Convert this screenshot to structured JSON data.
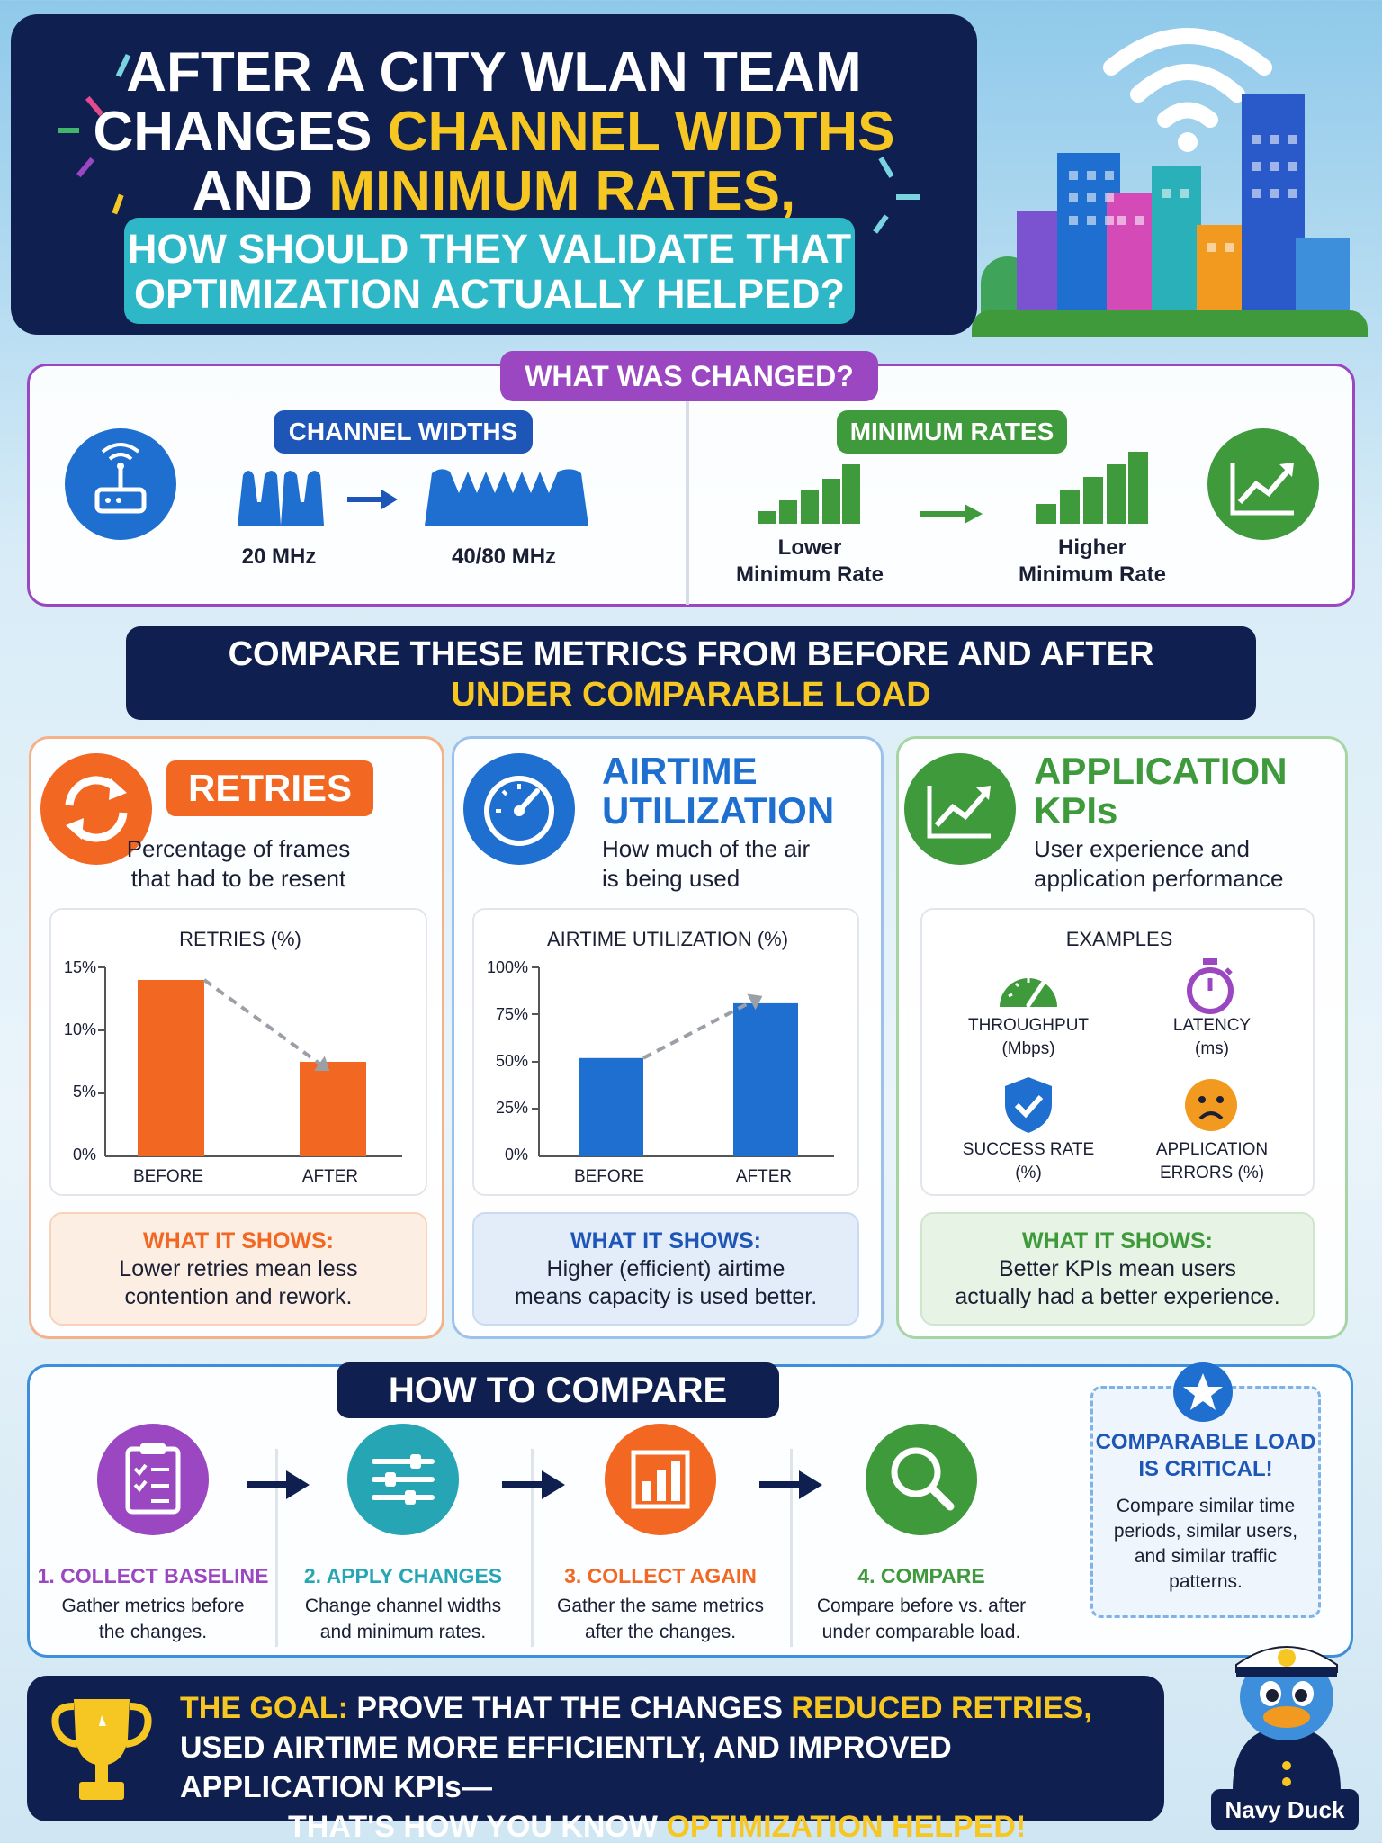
{
  "header": {
    "title_line1": "AFTER A CITY WLAN TEAM",
    "title_line2_a": "CHANGES ",
    "title_line2_b": "CHANNEL WIDTHS",
    "title_line3_a": "AND ",
    "title_line3_b": "MINIMUM RATES,",
    "subtitle_line1": "HOW SHOULD THEY VALIDATE THAT",
    "subtitle_line2": "OPTIMIZATION ACTUALLY HELPED?"
  },
  "changed": {
    "title": "WHAT WAS CHANGED?",
    "channel_widths": {
      "label": "CHANNEL WIDTHS",
      "before": "20 MHz",
      "after": "40/80 MHz"
    },
    "minimum_rates": {
      "label": "MINIMUM RATES",
      "before_line1": "Lower",
      "before_line2": "Minimum Rate",
      "after_line1": "Higher",
      "after_line2": "Minimum Rate"
    }
  },
  "compare_banner": {
    "line1": "COMPARE THESE METRICS FROM BEFORE AND AFTER",
    "line2": "UNDER COMPARABLE LOAD"
  },
  "cards": {
    "retries": {
      "title": "RETRIES",
      "desc_line1": "Percentage of frames",
      "desc_line2": "that had to be resent",
      "shows_title": "WHAT IT SHOWS:",
      "shows_line1": "Lower retries mean less",
      "shows_line2": "contention and rework.",
      "color": "#f26722"
    },
    "airtime": {
      "title_line1": "AIRTIME",
      "title_line2": "UTILIZATION",
      "desc_line1": "How much of the air",
      "desc_line2": "is being used",
      "shows_title": "WHAT IT SHOWS:",
      "shows_line1": "Higher (efficient) airtime",
      "shows_line2": "means capacity is used better.",
      "color": "#1e6fd0"
    },
    "kpis": {
      "title_line1": "APPLICATION",
      "title_line2": "KPIs",
      "desc_line1": "User experience and",
      "desc_line2": "application performance",
      "examples_title": "EXAMPLES",
      "ex1_line1": "THROUGHPUT",
      "ex1_line2": "(Mbps)",
      "ex2_line1": "LATENCY",
      "ex2_line2": "(ms)",
      "ex3_line1": "SUCCESS RATE",
      "ex3_line2": "(%)",
      "ex4_line1": "APPLICATION",
      "ex4_line2": "ERRORS (%)",
      "shows_title": "WHAT IT SHOWS:",
      "shows_line1": "Better KPIs mean users",
      "shows_line2": "actually had a better experience.",
      "color": "#3f9a3c"
    }
  },
  "chart_data": [
    {
      "type": "bar",
      "title": "RETRIES (%)",
      "categories": [
        "BEFORE",
        "AFTER"
      ],
      "values": [
        14,
        7.5
      ],
      "yticks": [
        "0%",
        "5%",
        "10%",
        "15%"
      ],
      "ylim": [
        0,
        15
      ],
      "color": "#f26722"
    },
    {
      "type": "bar",
      "title": "AIRTIME UTILIZATION (%)",
      "categories": [
        "BEFORE",
        "AFTER"
      ],
      "values": [
        52,
        81
      ],
      "yticks": [
        "0%",
        "25%",
        "50%",
        "75%",
        "100%"
      ],
      "ylim": [
        0,
        100
      ],
      "color": "#1e6fd0"
    }
  ],
  "how_to": {
    "title": "HOW TO COMPARE",
    "steps": [
      {
        "title": "1. COLLECT BASELINE",
        "line1": "Gather metrics before",
        "line2": "the changes.",
        "color": "#9b47c2"
      },
      {
        "title": "2. APPLY CHANGES",
        "line1": "Change channel widths",
        "line2": "and minimum rates.",
        "color": "#26a6b4"
      },
      {
        "title": "3. COLLECT AGAIN",
        "line1": "Gather the same metrics",
        "line2": "after the changes.",
        "color": "#f26722"
      },
      {
        "title": "4. COMPARE",
        "line1": "Compare before vs. after",
        "line2": "under comparable load.",
        "color": "#3f9a3c"
      }
    ],
    "critical": {
      "title_line1": "COMPARABLE LOAD",
      "title_line2": "IS CRITICAL!",
      "line1": "Compare similar time",
      "line2": "periods, similar users,",
      "line3": "and similar traffic",
      "line4": "patterns."
    }
  },
  "goal": {
    "a": "THE GOAL:",
    "b": " PROVE THAT THE CHANGES ",
    "c": "REDUCED RETRIES,",
    "line2": "USED AIRTIME MORE EFFICIENTLY, AND IMPROVED APPLICATION KPIs—",
    "line3_a": "THAT'S HOW YOU KNOW ",
    "line3_b": "OPTIMIZATION HELPED!"
  },
  "mascot": {
    "name": "Navy Duck"
  }
}
